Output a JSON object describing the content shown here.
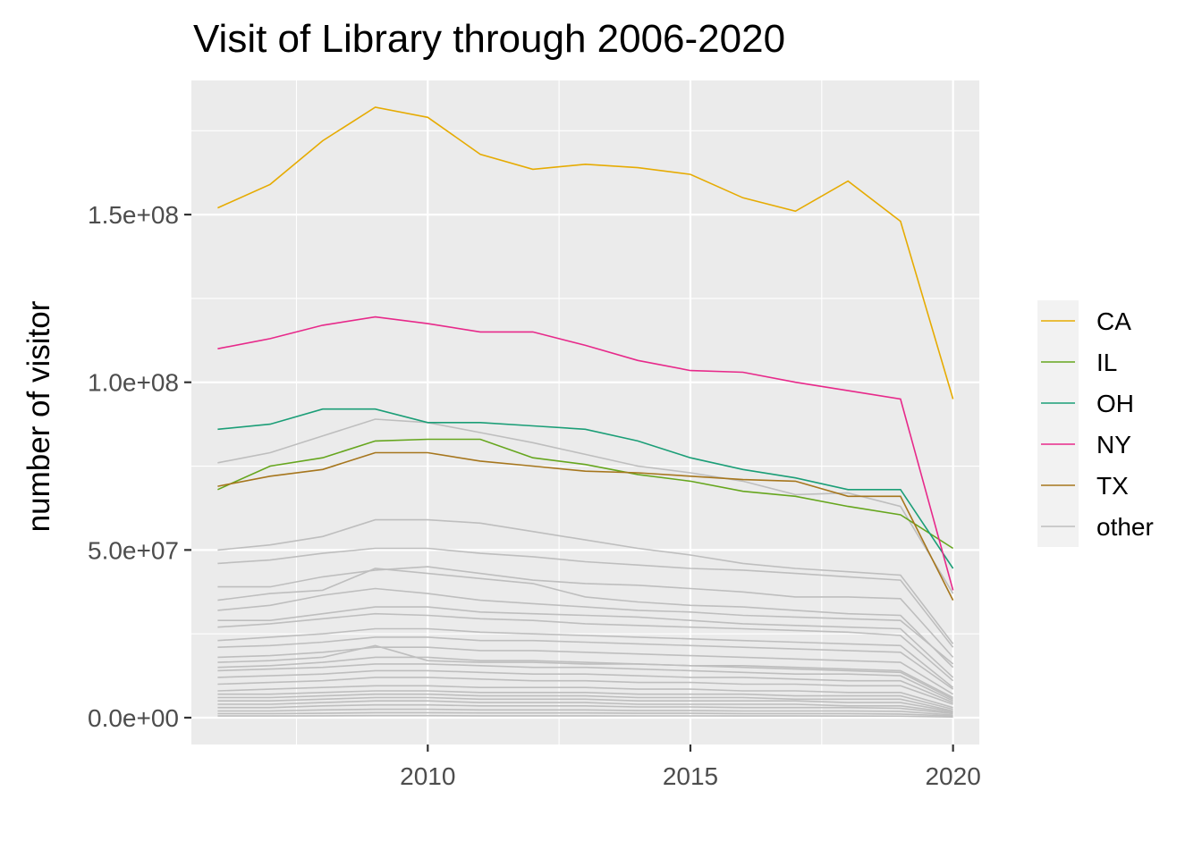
{
  "chart_data": {
    "type": "line",
    "title": "Visit of Library through 2006-2020",
    "xlabel": "",
    "ylabel": "number of visitor",
    "xlim": [
      2005.5,
      2020.5
    ],
    "ylim": [
      -8000000,
      190000000
    ],
    "x_ticks": [
      2010,
      2015,
      2020
    ],
    "x_tick_labels": [
      "2010",
      "2015",
      "2020"
    ],
    "y_ticks": [
      0,
      50000000,
      100000000,
      150000000
    ],
    "y_tick_labels": [
      "0.0e+00",
      "5.0e+07",
      "1.0e+08",
      "1.5e+08"
    ],
    "grid": true,
    "legend_position": "right",
    "legend": [
      "CA",
      "IL",
      "OH",
      "NY",
      "TX",
      "other"
    ],
    "colors": {
      "CA": "#E6AB02",
      "IL": "#66A61E",
      "OH": "#1B9E77",
      "NY": "#E7298A",
      "TX": "#A6761D",
      "other": "#BEBEBE",
      "panel": "#EBEBEB",
      "grid": "#FFFFFF"
    },
    "x": [
      2006,
      2007,
      2008,
      2009,
      2010,
      2011,
      2012,
      2013,
      2014,
      2015,
      2016,
      2017,
      2018,
      2019,
      2020
    ],
    "series": [
      {
        "name": "CA",
        "values": [
          152000000,
          159000000,
          172000000,
          182000000,
          179000000,
          168000000,
          163500000,
          165000000,
          164000000,
          162000000,
          155000000,
          151000000,
          160000000,
          148000000,
          95000000
        ]
      },
      {
        "name": "IL",
        "values": [
          68000000,
          75000000,
          77500000,
          82500000,
          83000000,
          83000000,
          77500000,
          75500000,
          72500000,
          70500000,
          67500000,
          66000000,
          63000000,
          60500000,
          50500000
        ]
      },
      {
        "name": "OH",
        "values": [
          86000000,
          87500000,
          92000000,
          92000000,
          88000000,
          88000000,
          87000000,
          86000000,
          82500000,
          77500000,
          74000000,
          71500000,
          68000000,
          68000000,
          44500000
        ]
      },
      {
        "name": "NY",
        "values": [
          110000000,
          113000000,
          117000000,
          119500000,
          117500000,
          115000000,
          115000000,
          111000000,
          106500000,
          103500000,
          103000000,
          100000000,
          97500000,
          95000000,
          38000000
        ]
      },
      {
        "name": "TX",
        "values": [
          69000000,
          72000000,
          74000000,
          79000000,
          79000000,
          76500000,
          75000000,
          73500000,
          73000000,
          72000000,
          71000000,
          70500000,
          66000000,
          66000000,
          35000000
        ]
      }
    ],
    "other_series": [
      [
        76000000,
        79000000,
        84000000,
        89000000,
        88000000,
        85000000,
        82000000,
        78500000,
        75000000,
        73000000,
        70500000,
        66500000,
        67000000,
        63000000,
        37000000
      ],
      [
        50000000,
        51500000,
        54000000,
        59000000,
        59000000,
        58000000,
        55500000,
        53000000,
        50500000,
        48500000,
        46000000,
        44500000,
        43500000,
        42500000,
        22000000
      ],
      [
        46000000,
        47000000,
        49000000,
        50500000,
        50500000,
        49000000,
        48000000,
        46500000,
        45500000,
        44500000,
        44000000,
        43000000,
        42000000,
        41000000,
        21000000
      ],
      [
        39000000,
        39000000,
        42000000,
        44000000,
        45000000,
        43000000,
        41000000,
        40000000,
        39500000,
        38500000,
        37500000,
        36000000,
        36000000,
        35500000,
        18000000
      ],
      [
        35000000,
        37000000,
        38000000,
        44500000,
        43000000,
        41500000,
        40000000,
        36000000,
        34500000,
        33500000,
        33000000,
        32000000,
        31000000,
        30500000,
        15000000
      ],
      [
        32000000,
        33500000,
        36500000,
        38500000,
        37000000,
        35000000,
        34000000,
        33000000,
        32000000,
        31500000,
        30500000,
        30000000,
        29500000,
        29000000,
        16000000
      ],
      [
        29000000,
        29000000,
        31000000,
        33000000,
        33000000,
        31500000,
        31000000,
        30500000,
        30000000,
        29000000,
        28000000,
        27500000,
        27000000,
        26500000,
        12000000
      ],
      [
        27000000,
        28000000,
        29500000,
        31000000,
        30500000,
        29500000,
        29000000,
        28000000,
        27500000,
        27000000,
        26500000,
        26000000,
        25500000,
        24500000,
        11000000
      ],
      [
        23000000,
        24000000,
        25000000,
        26500000,
        26500000,
        25500000,
        25000000,
        24500000,
        24000000,
        23500000,
        23000000,
        22500000,
        22000000,
        21500000,
        9000000
      ],
      [
        21000000,
        21500000,
        22500000,
        24000000,
        24000000,
        23000000,
        23000000,
        22500000,
        22000000,
        21500000,
        21000000,
        20500000,
        20000000,
        19500000,
        8500000
      ],
      [
        18000000,
        18500000,
        19500000,
        21000000,
        21000000,
        20000000,
        20000000,
        19500000,
        19000000,
        18500000,
        18000000,
        17500000,
        17000000,
        16500000,
        7000000
      ],
      [
        16500000,
        17000000,
        18000000,
        21500000,
        17000000,
        16500000,
        16500000,
        16000000,
        16000000,
        15500000,
        15500000,
        15000000,
        14500000,
        14000000,
        6000000
      ],
      [
        15000000,
        15500000,
        16500000,
        18000000,
        18000000,
        17000000,
        17000000,
        16500000,
        16000000,
        15500000,
        15000000,
        14500000,
        14000000,
        13500000,
        5500000
      ],
      [
        14000000,
        14500000,
        15000000,
        16000000,
        16000000,
        15500000,
        15000000,
        15000000,
        14500000,
        14000000,
        13500000,
        13000000,
        13000000,
        12500000,
        5000000
      ],
      [
        12000000,
        12500000,
        13000000,
        14000000,
        14000000,
        13500000,
        13000000,
        13000000,
        12500000,
        12000000,
        12000000,
        11500000,
        11000000,
        11000000,
        4500000
      ],
      [
        10000000,
        10500000,
        11000000,
        12000000,
        12000000,
        11500000,
        11000000,
        11000000,
        10500000,
        10500000,
        10000000,
        10000000,
        9500000,
        9500000,
        4000000
      ],
      [
        8000000,
        8500000,
        9000000,
        9500000,
        9500000,
        9000000,
        9000000,
        9000000,
        8500000,
        8500000,
        8000000,
        8000000,
        7500000,
        7500000,
        3000000
      ],
      [
        7000000,
        7000000,
        7500000,
        8000000,
        8000000,
        7500000,
        7500000,
        7500000,
        7000000,
        7000000,
        7000000,
        6500000,
        6500000,
        6500000,
        2500000
      ],
      [
        6000000,
        6000000,
        6500000,
        7000000,
        7000000,
        6500000,
        6500000,
        6500000,
        6000000,
        6000000,
        6000000,
        5500000,
        5500000,
        5500000,
        2000000
      ],
      [
        5000000,
        5000000,
        5500000,
        6000000,
        6000000,
        5500000,
        5500000,
        5500000,
        5000000,
        5000000,
        5000000,
        5000000,
        4500000,
        4500000,
        1800000
      ],
      [
        4000000,
        4000000,
        4500000,
        5000000,
        5000000,
        4500000,
        4500000,
        4500000,
        4000000,
        4000000,
        4000000,
        4000000,
        3500000,
        3500000,
        1500000
      ],
      [
        3000000,
        3000000,
        3500000,
        3800000,
        3800000,
        3500000,
        3500000,
        3500000,
        3200000,
        3200000,
        3000000,
        3000000,
        3000000,
        2800000,
        1200000
      ],
      [
        2000000,
        2000000,
        2300000,
        2500000,
        2500000,
        2300000,
        2300000,
        2300000,
        2100000,
        2100000,
        2000000,
        2000000,
        2000000,
        1900000,
        800000
      ],
      [
        1200000,
        1200000,
        1300000,
        1500000,
        1500000,
        1400000,
        1400000,
        1400000,
        1300000,
        1300000,
        1200000,
        1200000,
        1200000,
        1100000,
        500000
      ],
      [
        500000,
        500000,
        550000,
        600000,
        600000,
        550000,
        550000,
        550000,
        520000,
        520000,
        500000,
        500000,
        480000,
        460000,
        200000
      ]
    ]
  }
}
